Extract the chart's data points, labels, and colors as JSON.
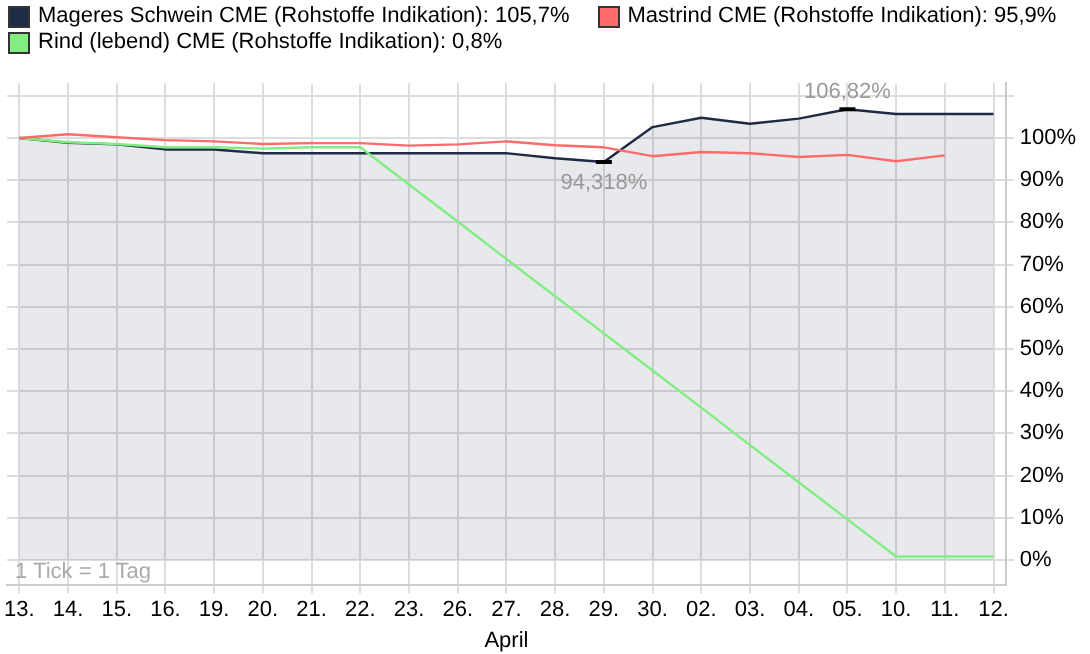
{
  "chart_data": {
    "type": "line",
    "categories": [
      "13.",
      "14.",
      "15.",
      "16.",
      "19.",
      "20.",
      "21.",
      "22.",
      "23.",
      "26.",
      "27.",
      "28.",
      "29.",
      "30.",
      "02.",
      "03.",
      "04.",
      "05.",
      "10.",
      "11.",
      "12."
    ],
    "series": [
      {
        "name": "Mageres Schwein CME (Rohstoffe Indikation): 105,7%",
        "type": "area",
        "color": "#1f2a44",
        "values": [
          100,
          98.9,
          98.5,
          97.3,
          97.3,
          96.4,
          96.4,
          96.4,
          96.4,
          96.4,
          96.4,
          95.2,
          94.318,
          102.6,
          104.8,
          103.4,
          104.6,
          106.82,
          105.7,
          105.7,
          105.7
        ]
      },
      {
        "name": "Mastrind CME (Rohstoffe Indikation): 95,9%",
        "color": "#ff6b6b",
        "values": [
          100,
          100.9,
          100.2,
          99.5,
          99.2,
          98.6,
          98.8,
          98.8,
          98.2,
          98.5,
          99.2,
          98.3,
          97.8,
          95.7,
          96.7,
          96.4,
          95.5,
          96,
          94.5,
          95.9,
          null
        ]
      },
      {
        "name": "Rind (lebend) CME (Rohstoffe Indikation): 0,8%",
        "color": "#80ee80",
        "values": [
          100,
          99,
          98.6,
          97.8,
          97.8,
          97.5,
          97.8,
          97.8,
          89,
          80.2,
          71.3,
          62.5,
          53.7,
          44.9,
          36.1,
          27.2,
          18.4,
          9.6,
          0.8,
          0.8,
          0.8
        ]
      }
    ],
    "ylim": [
      -6,
      113
    ],
    "yticks": [
      {
        "value": 0,
        "label": "0%"
      },
      {
        "value": 10,
        "label": "10%"
      },
      {
        "value": 20,
        "label": "20%"
      },
      {
        "value": 30,
        "label": "30%"
      },
      {
        "value": 40,
        "label": "40%"
      },
      {
        "value": 50,
        "label": "50%"
      },
      {
        "value": 60,
        "label": "60%"
      },
      {
        "value": 70,
        "label": "70%"
      },
      {
        "value": 80,
        "label": "80%"
      },
      {
        "value": 90,
        "label": "90%"
      },
      {
        "value": 100,
        "label": "100%"
      },
      {
        "value": 110,
        "label": null
      }
    ],
    "annotations": [
      {
        "text": "106,82%",
        "x": "05.",
        "y": 106.82
      },
      {
        "text": "94,318%",
        "x": "29.",
        "y": 94.318
      },
      "1 Tick = 1 Tag"
    ],
    "xlabel": "April",
    "grid": true,
    "legend": "top left",
    "marker": "none",
    "line_style": "solid"
  }
}
